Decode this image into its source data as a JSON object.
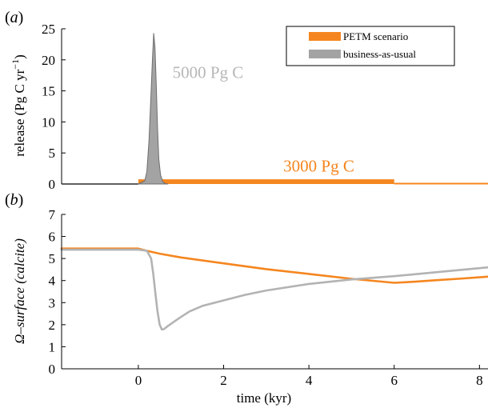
{
  "chart_data": [
    {
      "panel": "(a)",
      "panel_letter": "a",
      "type": "area",
      "xlabel": "",
      "ylabel": "release (Pg C yr",
      "ylabel_sup": "−1",
      "ylabel_end": ")",
      "xlim": [
        -1.8,
        8.2
      ],
      "ylim": [
        0,
        25
      ],
      "yticks": [
        0,
        5,
        10,
        15,
        20,
        25
      ],
      "legend": {
        "placement": "top-right",
        "entries": [
          "PETM scenario",
          "business-as-usual"
        ]
      },
      "annotations": [
        {
          "text": "5000 Pg C",
          "series": "business-as-usual",
          "x": 0.8,
          "y": 18
        },
        {
          "text": "3000 Pg C",
          "series": "PETM scenario",
          "x": 3.4,
          "y": 2.9
        }
      ],
      "series": [
        {
          "name": "PETM scenario",
          "color": "#f5861f",
          "x": [
            -1.8,
            0.0,
            0.0,
            6.0,
            6.0,
            8.2
          ],
          "y": [
            0,
            0,
            0.5,
            0.5,
            0,
            0
          ]
        },
        {
          "name": "business-as-usual",
          "color": "#a3a3a3",
          "x": [
            0.0,
            0.15,
            0.2,
            0.25,
            0.3,
            0.33,
            0.36,
            0.39,
            0.42,
            0.45,
            0.48,
            0.52,
            0.57,
            0.62,
            0.7
          ],
          "y": [
            0,
            0.5,
            2,
            7,
            15,
            20,
            24.3,
            22,
            16,
            9,
            4,
            1.5,
            0.4,
            0.1,
            0
          ]
        }
      ]
    },
    {
      "panel": "(b)",
      "panel_letter": "b",
      "type": "line",
      "xlabel": "time (kyr)",
      "ylabel": "Ω–surface (calcite)",
      "xlim": [
        -1.8,
        8.2
      ],
      "ylim": [
        0,
        7
      ],
      "xticks": [
        0,
        2,
        4,
        6,
        8
      ],
      "yticks": [
        0,
        1,
        2,
        3,
        4,
        5,
        6,
        7
      ],
      "series": [
        {
          "name": "PETM scenario",
          "color": "#f5861f",
          "x": [
            -1.8,
            0.0,
            0.2,
            0.5,
            1.0,
            2.0,
            3.0,
            4.0,
            5.0,
            6.0,
            6.5,
            7.0,
            7.5,
            8.2
          ],
          "y": [
            5.45,
            5.45,
            5.35,
            5.22,
            5.05,
            4.78,
            4.52,
            4.3,
            4.08,
            3.9,
            3.95,
            4.02,
            4.08,
            4.18
          ]
        },
        {
          "name": "business-as-usual",
          "color": "#b3b3b3",
          "x": [
            -1.8,
            0.0,
            0.2,
            0.3,
            0.35,
            0.4,
            0.45,
            0.5,
            0.55,
            0.6,
            0.7,
            0.85,
            1.0,
            1.2,
            1.5,
            2.0,
            2.5,
            3.0,
            4.0,
            5.0,
            6.0,
            7.0,
            8.2
          ],
          "y": [
            5.4,
            5.4,
            5.35,
            5.0,
            4.3,
            3.4,
            2.6,
            2.0,
            1.78,
            1.8,
            1.95,
            2.15,
            2.35,
            2.6,
            2.85,
            3.1,
            3.35,
            3.55,
            3.85,
            4.05,
            4.2,
            4.38,
            4.6
          ]
        }
      ]
    }
  ]
}
